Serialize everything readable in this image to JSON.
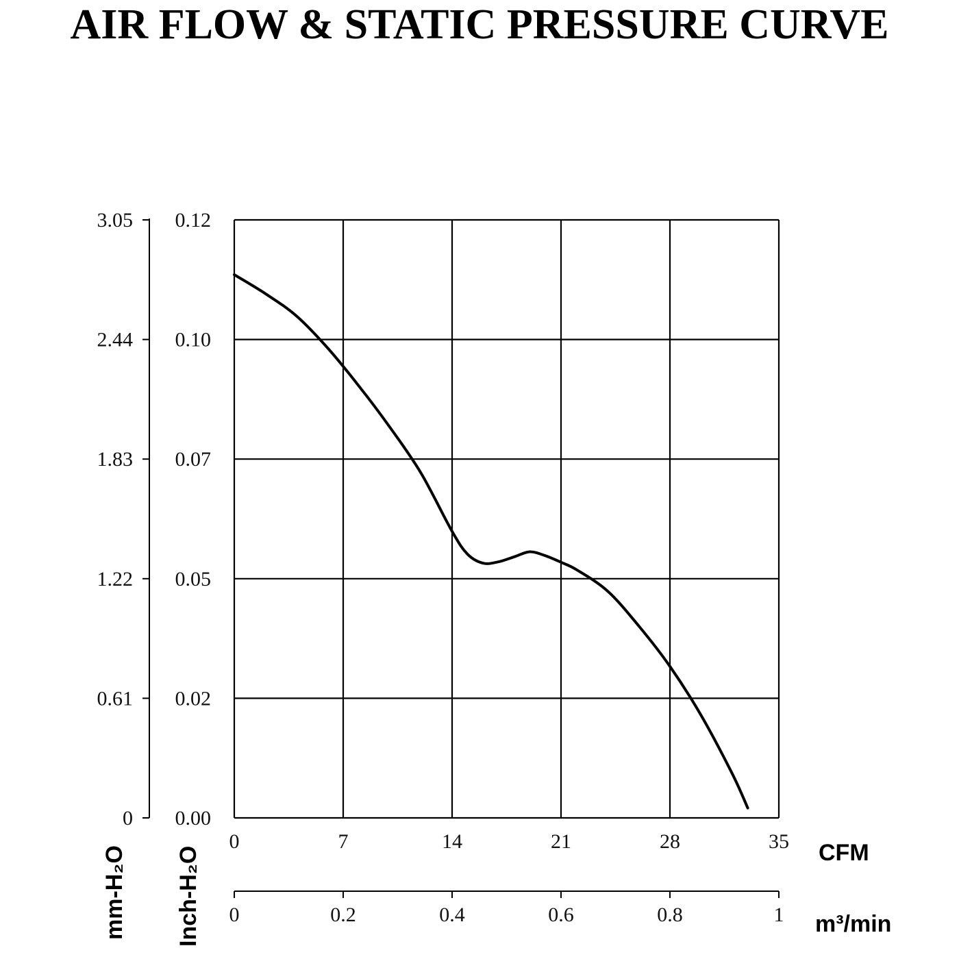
{
  "chart_data": {
    "type": "line",
    "title": "AIR FLOW & STATIC PRESSURE CURVE",
    "x": [
      0,
      2,
      4,
      6,
      8,
      10,
      12,
      14,
      15,
      16,
      17,
      18,
      19,
      20,
      21,
      22,
      24,
      26,
      28,
      30,
      32,
      33
    ],
    "series": [
      {
        "values": [
          0.109,
          0.1052,
          0.1007,
          0.0943,
          0.0867,
          0.0784,
          0.0692,
          0.0575,
          0.0529,
          0.0511,
          0.0514,
          0.0524,
          0.0534,
          0.0526,
          0.0513,
          0.0498,
          0.0455,
          0.0385,
          0.0304,
          0.0206,
          0.0089,
          0.002
        ]
      }
    ],
    "xlabel": "CFM",
    "xlabel_secondary": "m³/min",
    "ylabel_left": "mm-H₂O",
    "ylabel_right": "Inch-H₂O",
    "xlim": [
      0,
      35
    ],
    "ylim": [
      0,
      0.12
    ],
    "grid": true,
    "x_ticks": [
      "0",
      "7",
      "14",
      "21",
      "28",
      "35"
    ],
    "x2_ticks": [
      "0",
      "0.2",
      "0.4",
      "0.6",
      "0.8",
      "1"
    ],
    "y_inch_ticks": [
      "0.00",
      "0.02",
      "0.05",
      "0.07",
      "0.10",
      "0.12"
    ],
    "y_mm_ticks": [
      "0",
      "0.61",
      "1.22",
      "1.83",
      "2.44",
      "3.05"
    ],
    "line_color": "#000000"
  }
}
